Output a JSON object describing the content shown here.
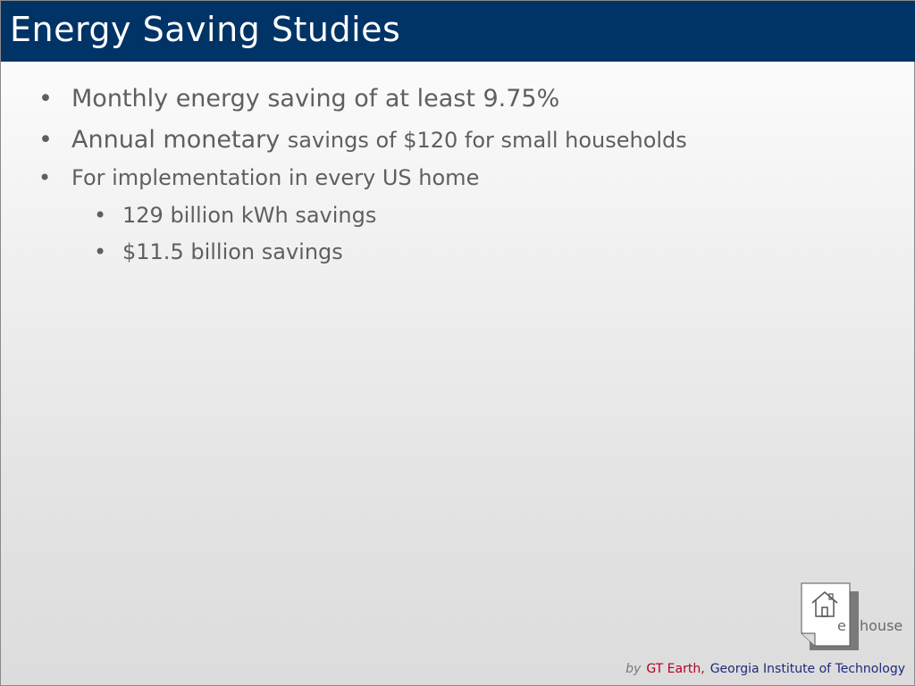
{
  "title": "Energy Saving Studies",
  "bullets": {
    "b1": "Monthly energy saving of at least 9.75%",
    "b2_large": "Annual monetary",
    "b2_small": "savings of $120 for small households",
    "b3": "For implementation in every US home",
    "b4": "129 billion kWh savings",
    "b5": "$11.5 billion savings",
    "glyph": "•"
  },
  "logo": {
    "e": "e",
    "house": "house",
    "icon": "house-icon"
  },
  "footer": {
    "by": "by",
    "org1": "GT Earth",
    "comma": ",",
    "org2": "Georgia Institute of Technology"
  },
  "colors": {
    "title_bar": "#003366",
    "title_text": "#ffffff",
    "body_text": "#5f5f5f",
    "footer_org1": "#b0002a",
    "footer_org2": "#1f2a7a"
  }
}
